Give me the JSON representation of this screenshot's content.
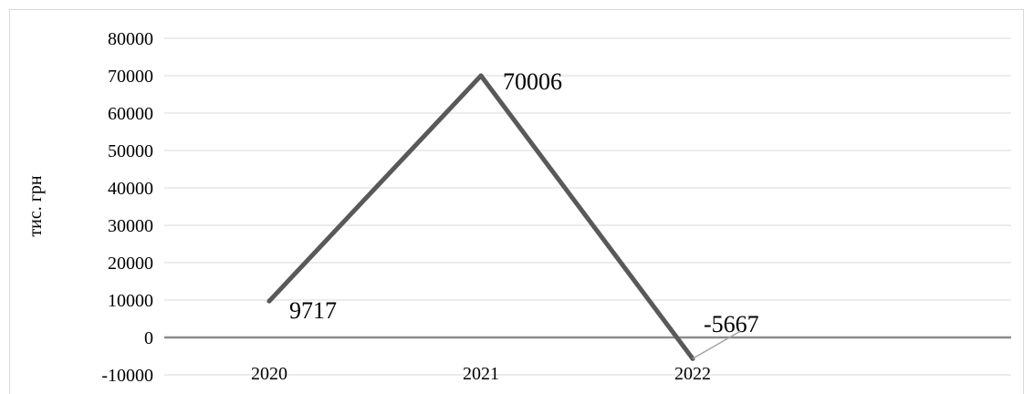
{
  "chart_data": {
    "type": "line",
    "categories": [
      "2020",
      "2021",
      "2022"
    ],
    "series": [
      {
        "values": [
          9717,
          70006,
          -5667
        ]
      }
    ],
    "data_labels": [
      "9717",
      "70006",
      "-5667"
    ],
    "ylabel": "тис. грн",
    "xlabel": "",
    "title": "",
    "ylim": [
      -10000,
      80000
    ],
    "yticks": [
      -10000,
      0,
      10000,
      20000,
      30000,
      40000,
      50000,
      60000,
      70000,
      80000
    ],
    "grid": "horizontal",
    "legend": "none",
    "colors": {
      "line": "#595959",
      "grid": "#d9d9d9",
      "zero_axis": "#8c8c8c",
      "leader": "#a6a6a6"
    }
  }
}
